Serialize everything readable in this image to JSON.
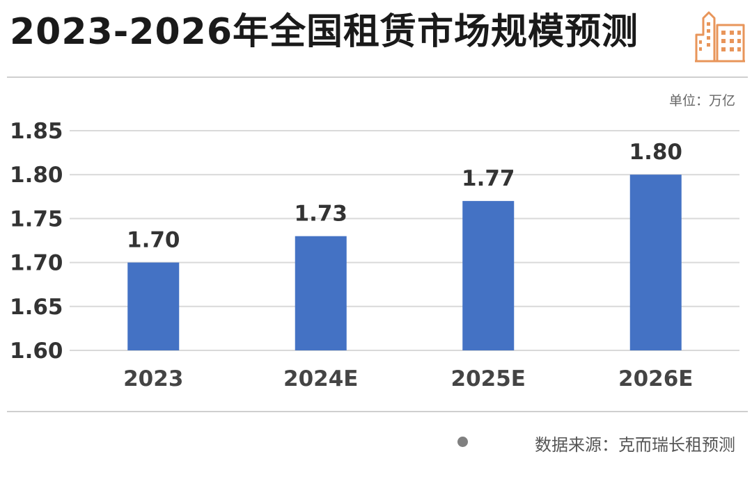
{
  "title": "2023-2026年全国租赁市场规模预测",
  "unit_label": "单位：万亿",
  "source_label": "数据来源：克而瑞长租预测",
  "icons": {
    "header": "building-icon",
    "source_bullet": "dot-icon"
  },
  "colors": {
    "bar": "#4472C4",
    "icon": "#E8955A",
    "grid": "#d9d9d9"
  },
  "chart_data": {
    "type": "bar",
    "title": "2023-2026年全国租赁市场规模预测",
    "xlabel": "",
    "ylabel": "",
    "unit": "万亿",
    "categories": [
      "2023",
      "2024E",
      "2025E",
      "2026E"
    ],
    "values": [
      1.7,
      1.73,
      1.77,
      1.8
    ],
    "value_labels": [
      "1.70",
      "1.73",
      "1.77",
      "1.80"
    ],
    "yticks": [
      "1.60",
      "1.65",
      "1.70",
      "1.75",
      "1.80",
      "1.85"
    ],
    "ylim": [
      1.6,
      1.85
    ],
    "grid": true,
    "legend": "none"
  }
}
